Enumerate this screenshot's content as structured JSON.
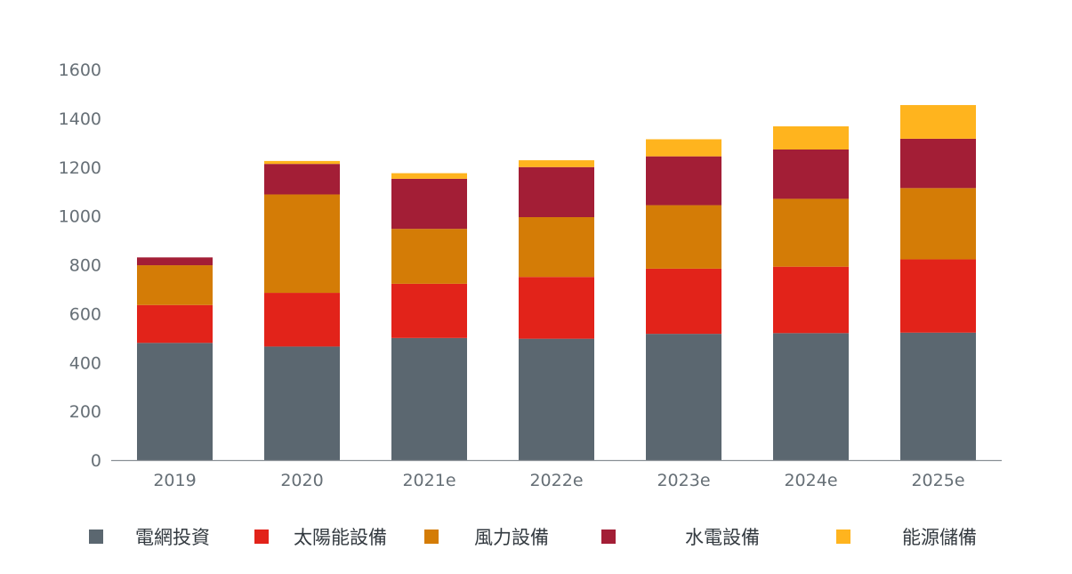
{
  "chart_data": {
    "type": "bar",
    "stacked": true,
    "title": "",
    "xlabel": "",
    "ylabel": "",
    "categories": [
      "2019",
      "2020",
      "2021e",
      "2022e",
      "2023e",
      "2024e",
      "2025e"
    ],
    "ylim": [
      0,
      1600
    ],
    "yticks": [
      "0",
      "200",
      "400",
      "600",
      "800",
      "1000",
      "1200",
      "1400",
      "1600"
    ],
    "grid": false,
    "legend_position": "bottom",
    "series": [
      {
        "name": "電網投資",
        "color": "#5b6770",
        "values": [
          480,
          465,
          500,
          497,
          517,
          520,
          522
        ]
      },
      {
        "name": "太陽能設備",
        "color": "#e2231a",
        "values": [
          155,
          220,
          222,
          253,
          267,
          272,
          300
        ]
      },
      {
        "name": "風力設備",
        "color": "#d47c06",
        "values": [
          163,
          403,
          225,
          245,
          260,
          278,
          292
        ]
      },
      {
        "name": "水電設備",
        "color": "#a31e36",
        "values": [
          32,
          125,
          205,
          205,
          200,
          202,
          202
        ]
      },
      {
        "name": "能源儲備",
        "color": "#ffb41e",
        "values": [
          0,
          12,
          23,
          28,
          70,
          95,
          138
        ]
      }
    ]
  }
}
